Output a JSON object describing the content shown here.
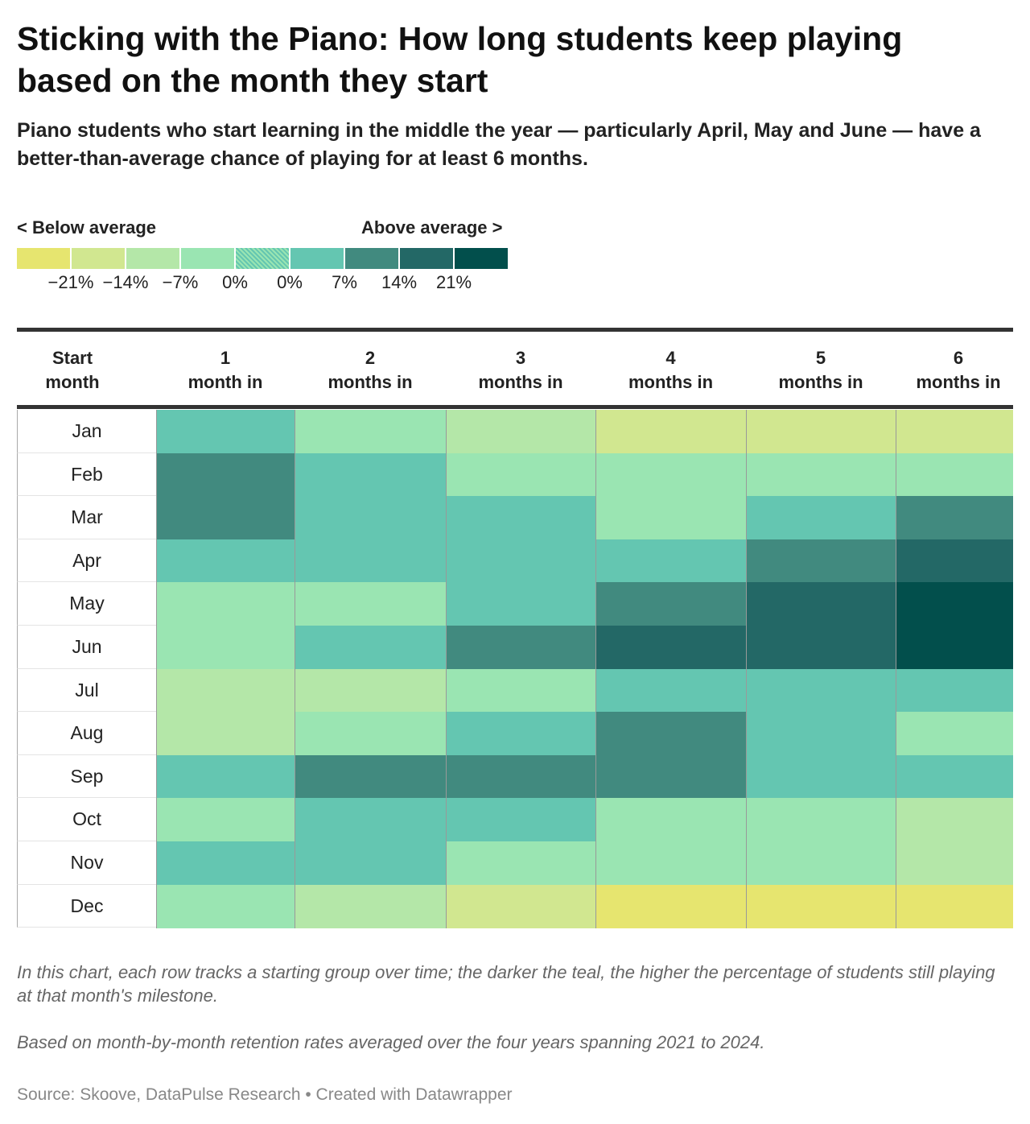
{
  "title": "Sticking with the Piano: How long students keep playing based on the month they start",
  "subtitle": "Piano students who start learning in the middle the year — particularly April, May and June — have a better-than-average chance of playing for at least 6 months.",
  "legend": {
    "left_label": "< Below average",
    "right_label": "Above average >",
    "colors": [
      "#e6e56f",
      "#d1e790",
      "#b4e7a8",
      "#9ae5b2",
      "pattern",
      "#64c6b1",
      "#418a7f",
      "#236866",
      "#024f4c"
    ],
    "ticks": [
      "−21%",
      "−14%",
      "−7%",
      "0%",
      "0%",
      "7%",
      "14%",
      "21%"
    ]
  },
  "chart_data": {
    "type": "heatmap",
    "title": "Sticking with the Piano: How long students keep playing based on the month they start",
    "row_header": "Start month",
    "columns": [
      "1 month in",
      "2 months in",
      "3 months in",
      "4 months in",
      "5 months in",
      "6 months in"
    ],
    "column_numbers": [
      "1",
      "2",
      "3",
      "4",
      "5",
      "6"
    ],
    "column_words": [
      "month in",
      "months in",
      "months in",
      "months in",
      "months in",
      "months in"
    ],
    "rows": [
      "Jan",
      "Feb",
      "Mar",
      "Apr",
      "May",
      "Jun",
      "Jul",
      "Aug",
      "Sep",
      "Oct",
      "Nov",
      "Dec"
    ],
    "value_note": "values are legend bin indices (0 = most below average, 8 = most above average)",
    "bins": [
      [
        5,
        3,
        2,
        1,
        1,
        1
      ],
      [
        6,
        5,
        3,
        3,
        3,
        3
      ],
      [
        6,
        5,
        5,
        3,
        5,
        6
      ],
      [
        5,
        5,
        5,
        5,
        6,
        7
      ],
      [
        3,
        3,
        5,
        6,
        7,
        8
      ],
      [
        3,
        5,
        6,
        7,
        7,
        8
      ],
      [
        2,
        2,
        3,
        5,
        5,
        5
      ],
      [
        2,
        3,
        5,
        6,
        5,
        3
      ],
      [
        5,
        6,
        6,
        6,
        5,
        5
      ],
      [
        3,
        5,
        5,
        3,
        3,
        2
      ],
      [
        5,
        5,
        3,
        3,
        3,
        2
      ],
      [
        3,
        2,
        1,
        0,
        0,
        0
      ]
    ]
  },
  "notes": [
    "In this chart, each row tracks a starting group over time; the darker the teal, the higher the percentage of students still playing at that month's milestone.",
    "Based on month-by-month retention rates averaged over the four years spanning 2021 to 2024."
  ],
  "source": "Source: Skoove, DataPulse Research • Created with Datawrapper"
}
